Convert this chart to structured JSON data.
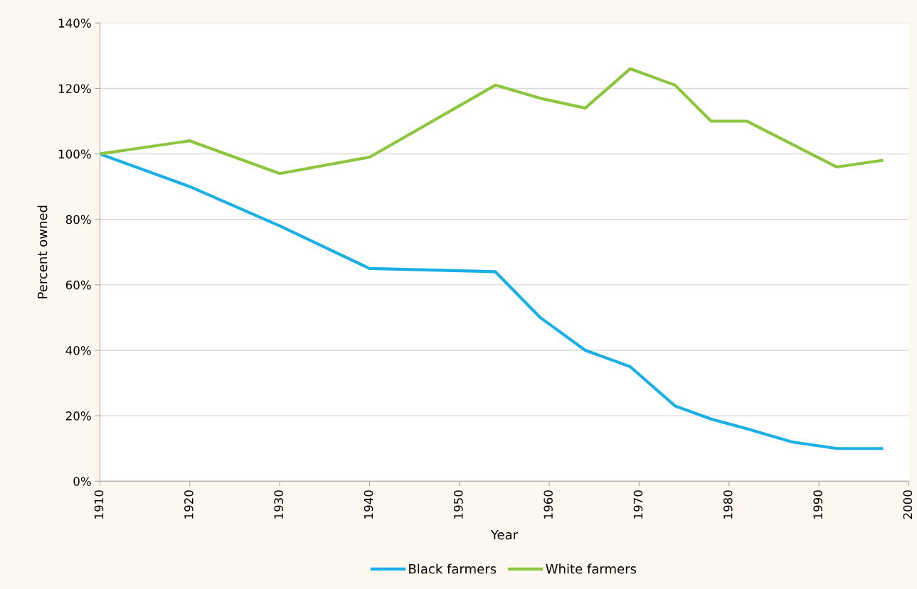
{
  "chart_data": {
    "type": "line",
    "xlabel": "Year",
    "ylabel": "Percent owned",
    "x": [
      1910,
      1920,
      1930,
      1940,
      1954,
      1959,
      1964,
      1969,
      1974,
      1978,
      1982,
      1987,
      1992,
      1997
    ],
    "series": [
      {
        "name": "Black farmers",
        "color": "#1aafe6",
        "values": [
          100,
          90,
          78,
          65,
          64,
          50,
          40,
          35,
          23,
          19,
          16,
          12,
          10,
          10
        ]
      },
      {
        "name": "White farmers",
        "color": "#8cc63f",
        "values": [
          100,
          104,
          94,
          99,
          121,
          117,
          114,
          126,
          121,
          110,
          110,
          103,
          96,
          98
        ]
      }
    ],
    "xlim": [
      1910,
      2000
    ],
    "xticks": [
      1910,
      1920,
      1930,
      1940,
      1950,
      1960,
      1970,
      1980,
      1990,
      2000
    ],
    "ylim": [
      0,
      140
    ],
    "yticks": [
      {
        "value": 0,
        "label": "0%"
      },
      {
        "value": 20,
        "label": "20%"
      },
      {
        "value": 40,
        "label": "40%"
      },
      {
        "value": 60,
        "label": "60%"
      },
      {
        "value": 80,
        "label": "80%"
      },
      {
        "value": 100,
        "label": "100%"
      },
      {
        "value": 120,
        "label": "120%"
      },
      {
        "value": 140,
        "label": "140%"
      }
    ],
    "grid": "y",
    "legend": "bottom",
    "marker": "none",
    "line_style": "solid"
  }
}
